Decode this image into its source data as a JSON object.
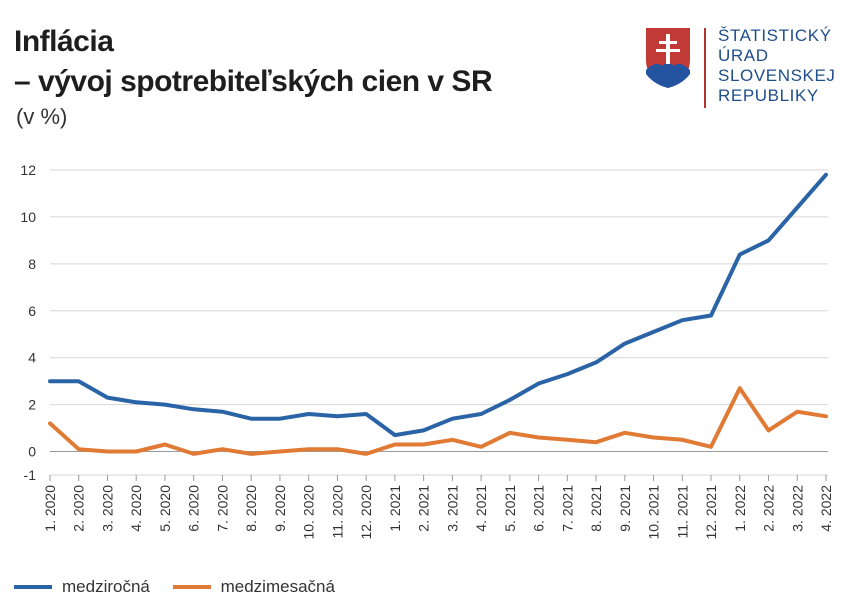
{
  "header": {
    "title_line1": "Inflácia",
    "title_line2": "– vývoj spotrebiteľských cien v SR",
    "unit": "(v %)"
  },
  "logo": {
    "lines": [
      "ŠTATISTICKÝ",
      "ÚRAD",
      "SLOVENSKEJ",
      "REPUBLIKY"
    ]
  },
  "colors": {
    "series1": "#2b64a6",
    "series2": "#e07a34",
    "grid": "#d6d6d6",
    "axis": "#9a9a9a"
  },
  "chart_data": {
    "type": "line",
    "categories": [
      "1. 2020",
      "2. 2020",
      "3. 2020",
      "4. 2020",
      "5. 2020",
      "6. 2020",
      "7. 2020",
      "8. 2020",
      "9. 2020",
      "10. 2020",
      "11. 2020",
      "12. 2020",
      "1. 2021",
      "2. 2021",
      "3. 2021",
      "4. 2021",
      "5. 2021",
      "6. 2021",
      "7. 2021",
      "8. 2021",
      "9. 2021",
      "10. 2021",
      "11. 2021",
      "12. 2021",
      "1. 2022",
      "2. 2022",
      "3. 2022",
      "4. 2022"
    ],
    "series": [
      {
        "name": "medziročná",
        "values": [
          3.0,
          3.0,
          2.3,
          2.1,
          2.0,
          1.8,
          1.7,
          1.4,
          1.4,
          1.6,
          1.5,
          1.6,
          0.7,
          0.9,
          1.4,
          1.6,
          2.2,
          2.9,
          3.3,
          3.8,
          4.6,
          5.1,
          5.6,
          5.8,
          8.4,
          9.0,
          10.4,
          11.8
        ]
      },
      {
        "name": "medzimesačná",
        "values": [
          1.2,
          0.1,
          0.0,
          0.0,
          0.3,
          -0.1,
          0.1,
          -0.1,
          0.0,
          0.1,
          0.1,
          -0.1,
          0.3,
          0.3,
          0.5,
          0.2,
          0.8,
          0.6,
          0.5,
          0.4,
          0.8,
          0.6,
          0.5,
          0.2,
          2.7,
          0.9,
          1.7,
          1.5
        ]
      }
    ],
    "yticks": [
      -1,
      0,
      2,
      4,
      6,
      8,
      10,
      12
    ],
    "ylim": [
      -1,
      12
    ],
    "grid": true,
    "legend": "bottom-left"
  }
}
